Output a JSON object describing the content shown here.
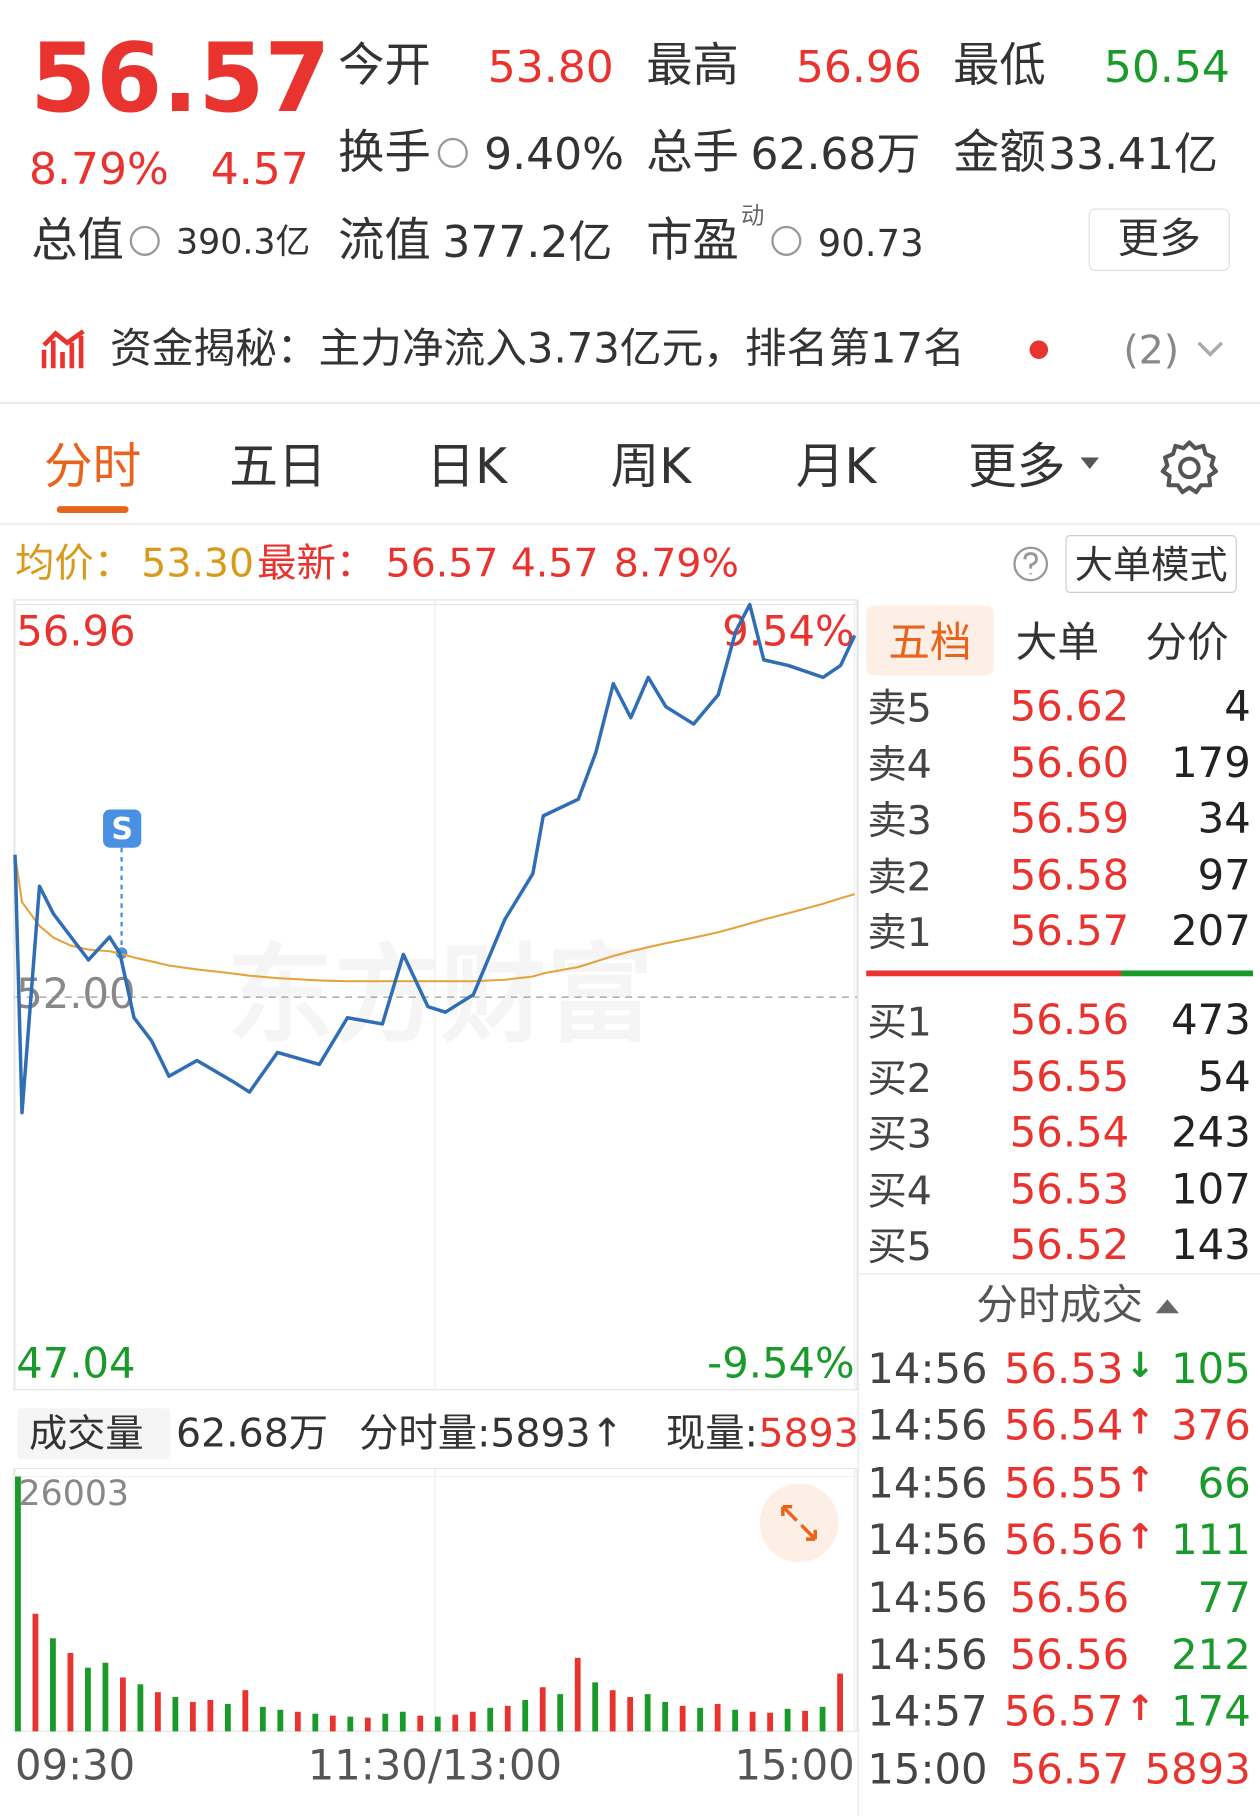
{
  "quote": {
    "price": "56.57",
    "change_pct": "8.79%",
    "change": "4.57",
    "total_value": {
      "label": "总值",
      "value": "390.3亿"
    },
    "stats": [
      {
        "label": "今开",
        "value": "53.80"
      },
      {
        "label": "最高",
        "value": "56.96"
      },
      {
        "label": "最低",
        "value": "50.54"
      },
      {
        "label": "换手",
        "value": "9.40%"
      },
      {
        "label": "总手",
        "value": "62.68万"
      },
      {
        "label": "金额",
        "value": "33.41亿"
      },
      {
        "label": "流值",
        "value": "377.2亿"
      },
      {
        "label": "市盈",
        "sup": "动",
        "value": "90.73"
      }
    ],
    "more": "更多"
  },
  "fund_flow": {
    "text": "资金揭秘：主力净流入3.73亿元，排名第17名",
    "count": "(2)"
  },
  "tabs": [
    "分时",
    "五日",
    "日K",
    "周K",
    "月K",
    "更多"
  ],
  "info_bar": {
    "avg_label": "均价：",
    "avg": "53.30",
    "latest_label": "最新：",
    "latest": "56.57",
    "change": "4.57",
    "change_pct": "8.79%",
    "mode_button": "大单模式"
  },
  "signal_marker": "S",
  "watermark": "东方财富",
  "chart_data": [
    {
      "type": "line",
      "x": [
        0,
        2,
        7,
        11,
        16,
        21,
        27,
        30,
        34,
        39,
        44,
        52,
        62,
        67,
        75,
        87,
        95,
        105,
        111,
        118,
        123,
        131,
        140,
        148,
        151,
        161,
        166,
        171,
        176,
        181,
        186,
        194,
        201,
        206,
        210,
        214,
        221,
        231,
        236,
        240
      ],
      "xlim": [
        0,
        240
      ],
      "xticks": [
        {
          "value": 0,
          "label": "09:30"
        },
        {
          "value": 120,
          "label": "11:30/13:00"
        },
        {
          "value": 240,
          "label": "15:00"
        }
      ],
      "ylim": [
        47.04,
        56.96
      ],
      "yticks": [
        56.96,
        {
          "value": 52,
          "label": "52.00"
        },
        47.04
      ],
      "y2lim": [
        -9.54,
        9.54
      ],
      "y2ticks": [
        {
          "value": 9.54,
          "label": "9.54%"
        },
        {
          "value": -9.54,
          "label": "-9.54%"
        }
      ],
      "series": [
        {
          "color": "#2f6db5",
          "values": [
            53.8,
            50.54,
            53.4,
            53.05,
            52.76,
            52.47,
            52.76,
            52.55,
            51.74,
            51.45,
            51.0,
            51.2,
            50.94,
            50.8,
            51.3,
            51.15,
            51.74,
            51.66,
            52.54,
            51.88,
            51.81,
            52.03,
            52.98,
            53.56,
            54.29,
            54.5,
            55.09,
            55.96,
            55.53,
            56.04,
            55.67,
            55.45,
            55.82,
            56.62,
            56.96,
            56.26,
            56.19,
            56.04,
            56.19,
            56.57
          ]
        },
        {
          "color": "#e6a23c",
          "values": [
            53.8,
            53.2,
            52.9,
            52.75,
            52.65,
            52.6,
            52.58,
            52.55,
            52.5,
            52.45,
            52.4,
            52.35,
            52.3,
            52.27,
            52.24,
            52.21,
            52.2,
            52.2,
            52.2,
            52.2,
            52.2,
            52.2,
            52.22,
            52.26,
            52.3,
            52.38,
            52.45,
            52.52,
            52.58,
            52.63,
            52.68,
            52.75,
            52.82,
            52.88,
            52.93,
            52.98,
            53.06,
            53.18,
            53.25,
            53.3
          ]
        }
      ]
    },
    {
      "type": "bar",
      "x": [
        0,
        5,
        10,
        15,
        20,
        25,
        30,
        35,
        40,
        45,
        50,
        55,
        60,
        65,
        70,
        75,
        80,
        85,
        90,
        95,
        100,
        105,
        110,
        115,
        120,
        125,
        130,
        135,
        140,
        145,
        150,
        155,
        160,
        165,
        170,
        175,
        180,
        185,
        190,
        195,
        200,
        205,
        210,
        215,
        220,
        225,
        230,
        235
      ],
      "xlim": [
        0,
        240
      ],
      "ylim": [
        0,
        26003
      ],
      "yticks": [
        26003
      ],
      "values": [
        26003,
        12000,
        9500,
        8000,
        6500,
        7000,
        5500,
        4800,
        4000,
        3500,
        3000,
        3200,
        2800,
        4200,
        2500,
        2200,
        2000,
        1800,
        1600,
        1500,
        1400,
        1800,
        2000,
        1600,
        1500,
        1700,
        2000,
        2400,
        2600,
        3200,
        4500,
        3800,
        7500,
        5000,
        4200,
        3500,
        3800,
        3000,
        2600,
        2400,
        2800,
        2200,
        2000,
        1900,
        2300,
        2100,
        2500,
        5893
      ],
      "colors": [
        "#1a9a2a",
        "#e8332f",
        "#1a9a2a",
        "#e8332f",
        "#1a9a2a",
        "#1a9a2a",
        "#e8332f",
        "#1a9a2a",
        "#e8332f",
        "#1a9a2a",
        "#e8332f",
        "#e8332f",
        "#1a9a2a",
        "#e8332f",
        "#1a9a2a",
        "#1a9a2a",
        "#e8332f",
        "#1a9a2a",
        "#e8332f",
        "#1a9a2a",
        "#e8332f",
        "#1a9a2a",
        "#1a9a2a",
        "#e8332f",
        "#1a9a2a",
        "#e8332f",
        "#e8332f",
        "#1a9a2a",
        "#e8332f",
        "#1a9a2a",
        "#e8332f",
        "#1a9a2a",
        "#e8332f",
        "#1a9a2a",
        "#e8332f",
        "#e8332f",
        "#1a9a2a",
        "#1a9a2a",
        "#e8332f",
        "#1a9a2a",
        "#e8332f",
        "#1a9a2a",
        "#e8332f",
        "#e8332f",
        "#1a9a2a",
        "#e8332f",
        "#1a9a2a",
        "#e8332f"
      ]
    }
  ],
  "volume_header": {
    "label": "成交量",
    "total": "62.68万",
    "minute_volume": "分时量:5893↑",
    "current_label": "现量:",
    "current": "5893"
  },
  "order_book": {
    "tabs": [
      "五档",
      "大单",
      "分价"
    ],
    "asks": [
      {
        "label": "卖5",
        "price": "56.62",
        "volume": "4"
      },
      {
        "label": "卖4",
        "price": "56.60",
        "volume": "179"
      },
      {
        "label": "卖3",
        "price": "56.59",
        "volume": "34"
      },
      {
        "label": "卖2",
        "price": "56.58",
        "volume": "97"
      },
      {
        "label": "卖1",
        "price": "56.57",
        "volume": "207"
      }
    ],
    "bids": [
      {
        "label": "买1",
        "price": "56.56",
        "volume": "473"
      },
      {
        "label": "买2",
        "price": "56.55",
        "volume": "54"
      },
      {
        "label": "买3",
        "price": "56.54",
        "volume": "243"
      },
      {
        "label": "买4",
        "price": "56.53",
        "volume": "107"
      },
      {
        "label": "买5",
        "price": "56.52",
        "volume": "143"
      }
    ]
  },
  "trades": {
    "title": "分时成交",
    "rows": [
      {
        "time": "14:56",
        "price": "56.53",
        "dir": "↓",
        "dir_color": "#1a9a2a",
        "volume": "105",
        "color": "#1a9a2a"
      },
      {
        "time": "14:56",
        "price": "56.54",
        "dir": "↑",
        "dir_color": "#e8332f",
        "volume": "376",
        "color": "#e8332f"
      },
      {
        "time": "14:56",
        "price": "56.55",
        "dir": "↑",
        "dir_color": "#e8332f",
        "volume": "66",
        "color": "#1a9a2a"
      },
      {
        "time": "14:56",
        "price": "56.56",
        "dir": "↑",
        "dir_color": "#e8332f",
        "volume": "111",
        "color": "#1a9a2a"
      },
      {
        "time": "14:56",
        "price": "56.56",
        "volume": "77",
        "color": "#1a9a2a"
      },
      {
        "time": "14:56",
        "price": "56.56",
        "volume": "212",
        "color": "#1a9a2a"
      },
      {
        "time": "14:57",
        "price": "56.57",
        "dir": "↑",
        "dir_color": "#e8332f",
        "volume": "174",
        "color": "#1a9a2a"
      },
      {
        "time": "15:00",
        "price": "56.57",
        "volume": "5893",
        "color": "#e8332f"
      }
    ]
  }
}
